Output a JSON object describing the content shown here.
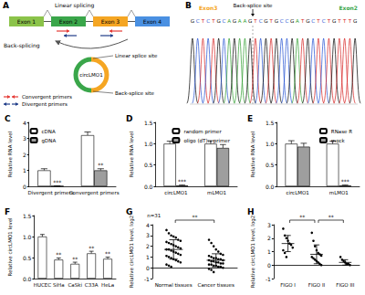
{
  "diagram": {
    "panel": "A",
    "exons": [
      "Exon 1",
      "Exon 2",
      "Exon 3",
      "Exon 4"
    ],
    "exon_colors": [
      "#8bc34a",
      "#3aa64a",
      "#f5a623",
      "#4a90e2"
    ],
    "linear_label": "Linear splicing",
    "back_label": "Back-splicing",
    "circle_label": "circLMO1",
    "linear_site": "Linear splice site",
    "back_site": "Back-splice site",
    "primers": [
      {
        "label": "Convergent primers",
        "color": "#e53935"
      },
      {
        "label": "Divergent primers",
        "color": "#1f3c88"
      }
    ]
  },
  "sequence": {
    "panel": "B",
    "left_exon": "Exon3",
    "right_exon": "Exon2",
    "site_label": "Back-splice site",
    "bases": "GCTCTGCAGAAGTCGTGCCGATGCTCTGTTTG",
    "junction": 12
  },
  "chart_data": [
    {
      "panel": "C",
      "type": "bar",
      "ylabel": "Relative RNA level",
      "categories": [
        "Divergent primers",
        "Convergent primers"
      ],
      "series": [
        {
          "name": "cDNA",
          "color": "#ffffff",
          "values": [
            1.0,
            3.2
          ],
          "errors": [
            0.1,
            0.2
          ]
        },
        {
          "name": "gDNA",
          "color": "#9e9e9e",
          "values": [
            0.02,
            1.0
          ],
          "errors": [
            0.01,
            0.1
          ]
        }
      ],
      "annotations": [
        {
          "category": "Divergent primers",
          "series": "gDNA",
          "text": "***"
        },
        {
          "category": "Convergent primers",
          "series": "gDNA",
          "text": "**"
        }
      ],
      "ylim": [
        0,
        4
      ],
      "yticks": [
        0,
        1,
        2,
        3,
        4
      ],
      "legend": "upper left"
    },
    {
      "panel": "D",
      "type": "bar",
      "ylabel": "Relative RNA level",
      "categories": [
        "circLMO1",
        "mLMO1"
      ],
      "series": [
        {
          "name": "random primer",
          "color": "#ffffff",
          "values": [
            1.0,
            1.0
          ],
          "errors": [
            0.06,
            0.07
          ]
        },
        {
          "name": "oligo (dT)₁₈ primer",
          "color": "#9e9e9e",
          "values": [
            0.02,
            0.9
          ],
          "errors": [
            0.01,
            0.08
          ]
        }
      ],
      "annotations": [
        {
          "category": "circLMO1",
          "series": "oligo (dT)₁₈ primer",
          "text": "***"
        }
      ],
      "ylim": [
        0,
        1.5
      ],
      "yticks": [
        {
          "value": 0,
          "label": "0.0"
        },
        0.5,
        {
          "value": 1,
          "label": "1.0"
        },
        1.5
      ],
      "legend": "upper right"
    },
    {
      "panel": "E",
      "type": "bar",
      "ylabel": "Relative RNA level",
      "categories": [
        "circLMO1",
        "mLMO1"
      ],
      "series": [
        {
          "name": "RNase R",
          "color": "#ffffff",
          "values": [
            1.0,
            1.0
          ],
          "errors": [
            0.07,
            0.06
          ]
        },
        {
          "name": "mock",
          "color": "#9e9e9e",
          "values": [
            0.93,
            0.02
          ],
          "errors": [
            0.08,
            0.01
          ]
        }
      ],
      "annotations": [
        {
          "category": "mLMO1",
          "series": "mock",
          "text": "***"
        }
      ],
      "ylim": [
        0,
        1.5
      ],
      "yticks": [
        {
          "value": 0,
          "label": "0.0"
        },
        0.5,
        {
          "value": 1,
          "label": "1.0"
        },
        1.5
      ],
      "legend": "upper right"
    },
    {
      "panel": "F",
      "type": "bar",
      "ylabel": "Relative circLMO1 level",
      "categories": [
        "HUCEC",
        "SiHa",
        "CaSki",
        "C33A",
        "HeLa"
      ],
      "values": [
        1.0,
        0.45,
        0.35,
        0.6,
        0.47
      ],
      "errors": [
        0.05,
        0.04,
        0.04,
        0.05,
        0.04
      ],
      "color": "#ffffff",
      "annotations": [
        {
          "category": "SiHa",
          "text": "**"
        },
        {
          "category": "CaSki",
          "text": "**"
        },
        {
          "category": "C33A",
          "text": "**"
        },
        {
          "category": "HeLa",
          "text": "**"
        }
      ],
      "ylim": [
        0,
        1.5
      ],
      "yticks": [
        {
          "value": 0,
          "label": "0.0"
        },
        0.5,
        {
          "value": 1,
          "label": "1.0"
        },
        1.5
      ]
    },
    {
      "panel": "G",
      "type": "scatter",
      "ylabel": "Relative circLMO1 level, log2",
      "categories": [
        "Normal tissues",
        "Cancer tissues"
      ],
      "values": [
        [
          3.5,
          3.2,
          3.0,
          2.9,
          2.8,
          2.6,
          2.5,
          2.4,
          2.3,
          2.2,
          2.1,
          2.0,
          1.9,
          1.8,
          1.7,
          1.7,
          1.6,
          1.5,
          1.4,
          1.3,
          1.2,
          1.1,
          1.0,
          0.9,
          0.8,
          0.7,
          0.6,
          0.5,
          0.3,
          0.2,
          0.1
        ],
        [
          2.6,
          2.3,
          2.0,
          1.7,
          1.5,
          1.3,
          1.2,
          1.1,
          1.0,
          0.9,
          0.9,
          0.8,
          0.8,
          0.7,
          0.7,
          0.6,
          0.6,
          0.5,
          0.5,
          0.4,
          0.4,
          0.3,
          0.3,
          0.2,
          0.2,
          0.1,
          0.1,
          0.0,
          -0.1,
          -0.2,
          -0.4
        ]
      ],
      "mean": [
        1.7,
        0.7
      ],
      "sd": [
        0.9,
        0.6
      ],
      "comparisons": [
        {
          "categories": [
            "Normal tissues",
            "Cancer tissues"
          ],
          "text": "**"
        }
      ],
      "note": "n=31",
      "marker": "circle",
      "ylim": [
        -1,
        4
      ],
      "yticks": [
        -1,
        0,
        1,
        2,
        3,
        4
      ]
    },
    {
      "panel": "H",
      "type": "scatter",
      "ylabel": "Relative circLMO1 level, log2",
      "categories": [
        "FIGO I",
        "FIGO II",
        "FIGO III"
      ],
      "values": [
        [
          2.7,
          2.2,
          2.0,
          1.8,
          1.6,
          1.5,
          1.3,
          1.1,
          0.9,
          0.6
        ],
        [
          2.4,
          1.8,
          1.4,
          1.1,
          0.9,
          0.8,
          0.7,
          0.6,
          0.5,
          0.4,
          0.3,
          0.2,
          0.1,
          0.0
        ],
        [
          0.6,
          0.4,
          0.3,
          0.2,
          0.1,
          0.1,
          0.0
        ]
      ],
      "mean": [
        1.6,
        0.8,
        0.2
      ],
      "sd": [
        0.6,
        0.7,
        0.2
      ],
      "comparisons": [
        {
          "categories": [
            "FIGO I",
            "FIGO II"
          ],
          "text": "**"
        },
        {
          "categories": [
            "FIGO II",
            "FIGO III"
          ],
          "text": "**"
        }
      ],
      "marker": "circle",
      "ylim": [
        -1,
        3
      ],
      "yticks": [
        -1,
        0,
        1,
        2,
        3
      ]
    }
  ]
}
